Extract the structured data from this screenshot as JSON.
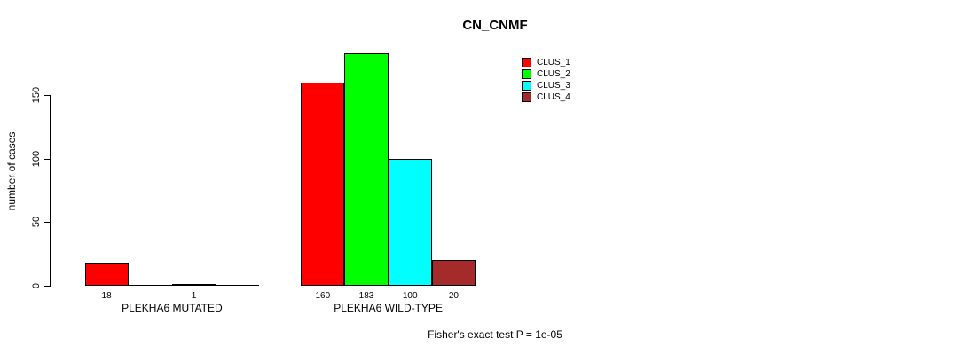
{
  "chart_data": {
    "type": "bar",
    "title": "CN_CNMF",
    "ylabel": "number of cases",
    "xlabel": "",
    "categories": [
      "PLEKHA6 MUTATED",
      "PLEKHA6 WILD-TYPE"
    ],
    "series": [
      {
        "name": "CLUS_1",
        "color": "#FF0000",
        "values": [
          18,
          160
        ]
      },
      {
        "name": "CLUS_2",
        "color": "#00FF00",
        "values": [
          0,
          183
        ]
      },
      {
        "name": "CLUS_3",
        "color": "#00FFFF",
        "values": [
          1,
          100
        ]
      },
      {
        "name": "CLUS_4",
        "color": "#A52A2A",
        "values": [
          0,
          20
        ]
      }
    ],
    "bar_value_labels": {
      "PLEKHA6 MUTATED": [
        "18",
        "",
        "1",
        ""
      ],
      "PLEKHA6 WILD-TYPE": [
        "160",
        "183",
        "100",
        "20"
      ]
    },
    "yticks": [
      "0",
      "50",
      "100",
      "150"
    ],
    "ylim": [
      0,
      183
    ],
    "grid": false,
    "legend_position": "top-right",
    "legend_entries": [
      "CLUS_1",
      "CLUS_2",
      "CLUS_3",
      "CLUS_4"
    ],
    "annotation": "Fisher's exact test P = 1e-05"
  },
  "colors": {
    "background": "#FFFFFF",
    "axis": "#000000",
    "bar_border": "#000000",
    "text": "#000000"
  }
}
